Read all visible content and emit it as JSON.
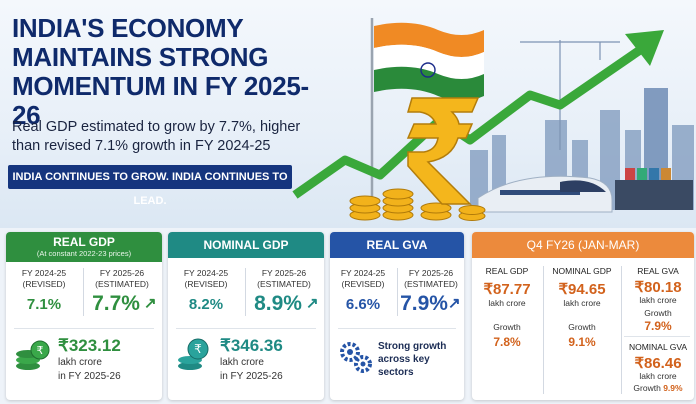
{
  "header": {
    "title_line1": "INDIA'S ECONOMY",
    "title_line2": "MAINTAINS STRONG",
    "title_line3": "MOMENTUM IN FY 2025-26",
    "subtitle_line1": "Real GDP estimated to grow by 7.7%, higher",
    "subtitle_line2": "than revised 7.1% growth in FY 2024-25",
    "banner": "INDIA CONTINUES TO GROW. INDIA CONTINUES TO LEAD."
  },
  "colors": {
    "navy": "#0f2a6b",
    "green": "#2f8f3f",
    "teal": "#1f8a84",
    "blue": "#2554a6",
    "orange": "#ec8a3c",
    "gold": "#f2b21b"
  },
  "real_gdp": {
    "title": "REAL GDP",
    "note": "(At constant 2022-23 prices)",
    "col1_label": "FY 2024-25",
    "col1_tag": "(REVISED)",
    "col1_value": "7.1%",
    "col2_label": "FY 2025-26",
    "col2_tag": "(ESTIMATED)",
    "col2_value": "7.7%",
    "amount": "₹323.12",
    "amount_unit": "lakh crore",
    "amount_period": "in FY 2025-26",
    "icon": "coins-icon"
  },
  "nominal_gdp": {
    "title": "NOMINAL GDP",
    "col1_label": "FY 2024-25",
    "col1_tag": "(REVISED)",
    "col1_value": "8.2%",
    "col2_label": "FY 2025-26",
    "col2_tag": "(ESTIMATED)",
    "col2_value": "8.9%",
    "amount": "₹346.36",
    "amount_unit": "lakh crore",
    "amount_period": "in FY 2025-26",
    "icon": "rupee-coins-icon"
  },
  "real_gva": {
    "title": "REAL GVA",
    "col1_label": "FY 2024-25",
    "col1_tag": "(REVISED)",
    "col1_value": "6.6%",
    "col2_label": "FY 2025-26",
    "col2_tag": "(ESTIMATED)",
    "col2_value": "7.9%",
    "note_line1": "Strong growth",
    "note_line2": "across key",
    "note_line3": "sectors",
    "icon": "gears-icon"
  },
  "q4": {
    "title": "Q4 FY26 (JAN-MAR)",
    "gdp_label": "REAL GDP",
    "gdp_amount": "₹87.77",
    "gdp_unit": "lakh crore",
    "gdp_growth_label": "Growth",
    "gdp_growth": "7.8%",
    "ngdp_label": "NOMINAL GDP",
    "ngdp_amount": "₹94.65",
    "ngdp_unit": "lakh crore",
    "ngdp_growth_label": "Growth",
    "ngdp_growth": "9.1%",
    "gva_label": "REAL GVA",
    "gva_amount": "₹80.18",
    "gva_unit": "lakh crore",
    "gva_growth_label": "Growth",
    "gva_growth": "7.9%",
    "ngva_label": "NOMINAL GVA",
    "ngva_amount": "₹86.46",
    "ngva_unit": "lakh crore",
    "ngva_growth_label": "Growth",
    "ngva_growth": "9.9%"
  }
}
